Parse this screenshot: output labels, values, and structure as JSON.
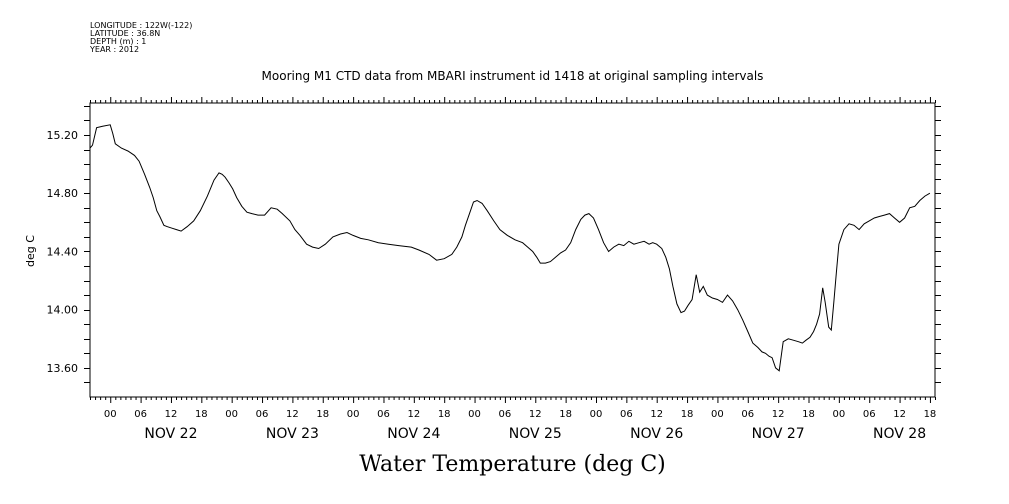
{
  "header": {
    "longitude": "LONGITUDE : 122W(-122)",
    "latitude": "LATITUDE : 36.8N",
    "depth": "DEPTH (m) : 1",
    "year": "YEAR : 2012"
  },
  "chart_data": {
    "type": "line",
    "title": "Mooring M1 CTD data from MBARI instrument id 1418 at original sampling intervals",
    "xlabel": "Water Temperature (deg C)",
    "ylabel": "deg C",
    "ylim": [
      13.4,
      15.42
    ],
    "xlim_hours": [
      -4,
      163
    ],
    "y_ticks": [
      "13.60",
      "14.00",
      "14.40",
      "14.80",
      "15.20"
    ],
    "hour_ticks": [
      "00",
      "06",
      "12",
      "18",
      "00",
      "06",
      "12",
      "18",
      "00",
      "06",
      "12",
      "18",
      "00",
      "06",
      "12",
      "18",
      "00",
      "06",
      "12",
      "18",
      "00",
      "06",
      "12",
      "18",
      "00",
      "06",
      "12",
      "18"
    ],
    "day_labels": [
      "NOV 22",
      "NOV 23",
      "NOV 24",
      "NOV 25",
      "NOV 26",
      "NOV 27",
      "NOV 28"
    ],
    "grid": false,
    "series": [
      {
        "x_hours": [
          -4.0,
          -3.5,
          -2.7,
          -1.5,
          0.0,
          0.5,
          1.0,
          2.2,
          3.5,
          4.8,
          5.7,
          6.8,
          7.8,
          8.5,
          9.2,
          9.8,
          10.6,
          11.3,
          12.2,
          13.1,
          14.0,
          15.2,
          16.5,
          17.8,
          19.2,
          20.5,
          21.5,
          22.1,
          22.7,
          23.5,
          24.2,
          25.0,
          26.0,
          27.0,
          28.0,
          29.2,
          30.5,
          31.8,
          33.0,
          34.0,
          35.5,
          36.5,
          37.5,
          38.8,
          40.0,
          41.2,
          42.5,
          44.0,
          45.5,
          46.8,
          48.0,
          49.5,
          51.0,
          53.0,
          55.0,
          57.0,
          59.5,
          61.0,
          63.0,
          64.5,
          66.0,
          67.5,
          68.5,
          69.5,
          70.2,
          71.0,
          71.8,
          72.5,
          73.5,
          74.5,
          75.8,
          77.0,
          78.5,
          80.0,
          81.5,
          82.5,
          83.5,
          84.3,
          85.0,
          86.0,
          87.0,
          88.0,
          89.0,
          90.0,
          91.0,
          92.0,
          93.0,
          93.8,
          94.6,
          95.5,
          96.5,
          97.5,
          98.5,
          99.5,
          100.5,
          101.5,
          102.5,
          103.5,
          104.5,
          105.5,
          106.5,
          107.2,
          108.0,
          109.0,
          109.8,
          110.5,
          111.2,
          112.0,
          112.8,
          113.5,
          114.2,
          115.0,
          115.8,
          116.5,
          117.2,
          118.0,
          119.0,
          120.0,
          121.0,
          122.0,
          123.0,
          124.0,
          125.0,
          126.0,
          127.0,
          128.0,
          128.8,
          129.5,
          130.2,
          130.8,
          131.5,
          132.2,
          133.0,
          134.0,
          135.0,
          136.0,
          136.8,
          137.5,
          138.3,
          139.0,
          139.6,
          140.2,
          140.8,
          141.3,
          142.0,
          142.5,
          143.0,
          143.5,
          144.0,
          145.0,
          146.0,
          147.0,
          148.0,
          149.0,
          150.0,
          151.0,
          152.0,
          153.0,
          154.0,
          155.0,
          156.0,
          157.0,
          158.0,
          159.0,
          160.0,
          161.0,
          162.0
        ],
        "values": [
          15.11,
          15.13,
          15.25,
          15.26,
          15.27,
          15.21,
          15.14,
          15.11,
          15.09,
          15.06,
          15.02,
          14.93,
          14.84,
          14.77,
          14.68,
          14.64,
          14.58,
          14.57,
          14.56,
          14.55,
          14.54,
          14.57,
          14.61,
          14.68,
          14.78,
          14.89,
          14.94,
          14.93,
          14.91,
          14.87,
          14.83,
          14.77,
          14.71,
          14.67,
          14.66,
          14.65,
          14.65,
          14.7,
          14.69,
          14.66,
          14.61,
          14.55,
          14.51,
          14.45,
          14.43,
          14.42,
          14.45,
          14.5,
          14.52,
          14.53,
          14.51,
          14.49,
          14.48,
          14.46,
          14.45,
          14.44,
          14.43,
          14.41,
          14.38,
          14.34,
          14.35,
          14.38,
          14.43,
          14.5,
          14.58,
          14.66,
          14.74,
          14.75,
          14.73,
          14.68,
          14.61,
          14.55,
          14.51,
          14.48,
          14.46,
          14.43,
          14.4,
          14.36,
          14.32,
          14.32,
          14.33,
          14.36,
          14.39,
          14.41,
          14.46,
          14.55,
          14.62,
          14.65,
          14.66,
          14.63,
          14.55,
          14.46,
          14.4,
          14.43,
          14.45,
          14.44,
          14.47,
          14.45,
          14.46,
          14.47,
          14.45,
          14.46,
          14.45,
          14.42,
          14.36,
          14.28,
          14.16,
          14.04,
          13.98,
          13.99,
          14.03,
          14.07,
          14.24,
          14.12,
          14.16,
          14.1,
          14.08,
          14.07,
          14.05,
          14.1,
          14.06,
          14.0,
          13.93,
          13.85,
          13.77,
          13.74,
          13.71,
          13.7,
          13.68,
          13.67,
          13.6,
          13.58,
          13.78,
          13.8,
          13.79,
          13.78,
          13.77,
          13.79,
          13.81,
          13.85,
          13.9,
          13.97,
          14.15,
          14.05,
          13.88,
          13.86,
          14.05,
          14.25,
          14.45,
          14.55,
          14.59,
          14.58,
          14.55,
          14.59,
          14.61,
          14.63,
          14.64,
          14.65,
          14.66,
          14.63,
          14.6,
          14.63,
          14.7,
          14.71,
          14.75,
          14.78,
          14.8
        ]
      }
    ]
  }
}
